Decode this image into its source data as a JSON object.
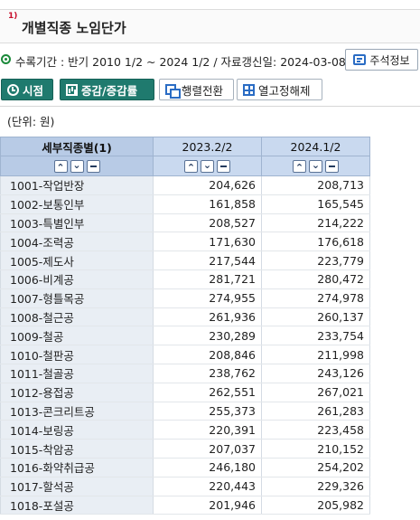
{
  "header": {
    "footnote_mark": "1)",
    "title": "개별직종 노임단가"
  },
  "info": {
    "text": "수록기간 : 반기 2010 1/2 ~ 2024 1/2 / 자료갱신일: 2024-03-08 /",
    "note_button": "주석정보"
  },
  "toolbar": {
    "timepoint": "시점",
    "change_rate": "증감/증감률",
    "pivot": "행렬전환",
    "unfix": "열고정해제"
  },
  "unit_label": "(단위: 원)",
  "table": {
    "columns": [
      "세부직종별(1)",
      "2023.2/2",
      "2024.1/2"
    ],
    "rows": [
      [
        "1001-작업반장",
        "204,626",
        "208,713"
      ],
      [
        "1002-보통인부",
        "161,858",
        "165,545"
      ],
      [
        "1003-특별인부",
        "208,527",
        "214,222"
      ],
      [
        "1004-조력공",
        "171,630",
        "176,618"
      ],
      [
        "1005-제도사",
        "217,544",
        "223,779"
      ],
      [
        "1006-비계공",
        "281,721",
        "280,472"
      ],
      [
        "1007-형틀목공",
        "274,955",
        "274,978"
      ],
      [
        "1008-철근공",
        "261,936",
        "260,137"
      ],
      [
        "1009-철공",
        "230,289",
        "233,754"
      ],
      [
        "1010-철판공",
        "208,846",
        "211,998"
      ],
      [
        "1011-철골공",
        "238,762",
        "243,126"
      ],
      [
        "1012-용접공",
        "262,551",
        "267,021"
      ],
      [
        "1013-콘크리트공",
        "255,373",
        "261,283"
      ],
      [
        "1014-보링공",
        "220,391",
        "223,458"
      ],
      [
        "1015-착암공",
        "207,037",
        "210,152"
      ],
      [
        "1016-화약취급공",
        "246,180",
        "254,202"
      ],
      [
        "1017-할석공",
        "220,443",
        "229,326"
      ],
      [
        "1018-포설공",
        "201,946",
        "205,982"
      ]
    ]
  }
}
